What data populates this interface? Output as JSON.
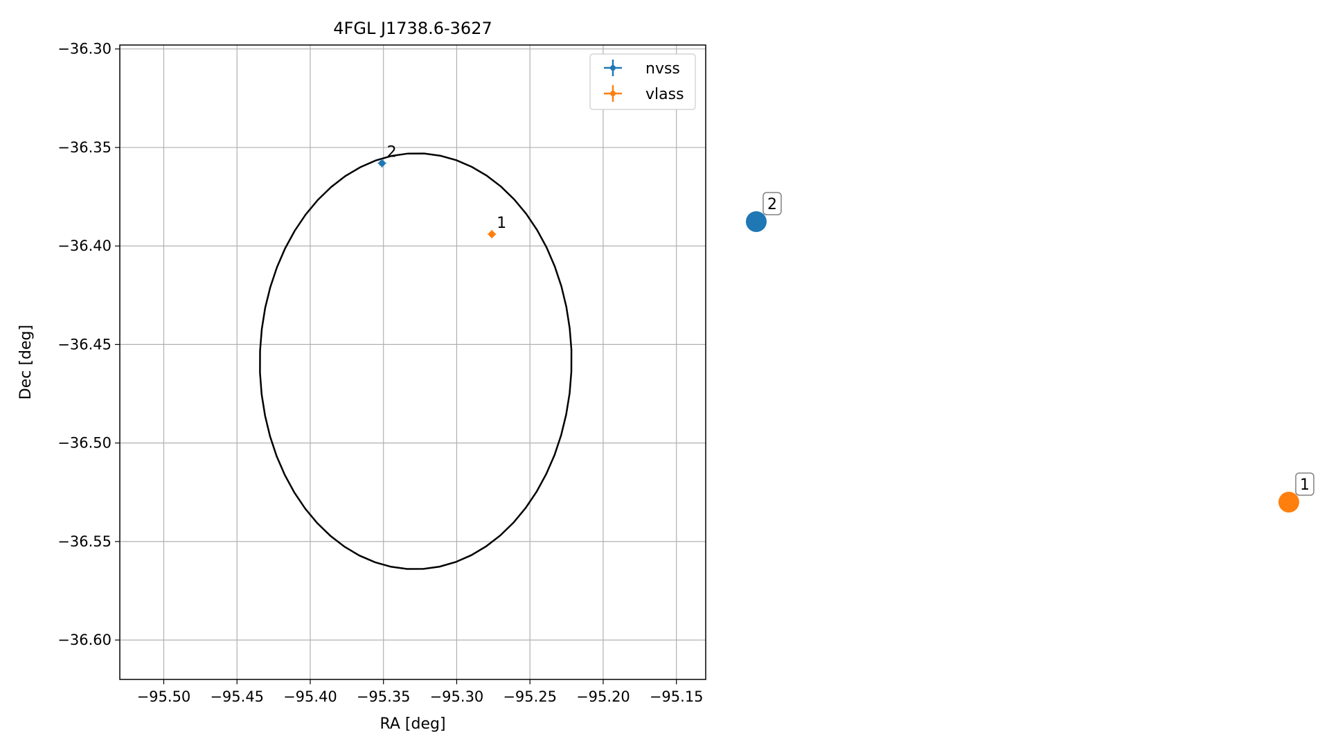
{
  "chart_data": {
    "type": "scatter",
    "title": "4FGL J1738.6-3627",
    "xlabel": "RA [deg]",
    "ylabel": "Dec [deg]",
    "xlim": [
      -95.53,
      -95.13
    ],
    "ylim": [
      -36.62,
      -36.298
    ],
    "xticks": [
      -95.5,
      -95.45,
      -95.4,
      -95.35,
      -95.3,
      -95.25,
      -95.2,
      -95.15
    ],
    "xtick_labels": [
      "−95.50",
      "−95.45",
      "−95.40",
      "−95.35",
      "−95.30",
      "−95.25",
      "−95.20",
      "−95.15"
    ],
    "yticks": [
      -36.3,
      -36.35,
      -36.4,
      -36.45,
      -36.5,
      -36.55,
      -36.6
    ],
    "ytick_labels": [
      "−36.30",
      "−36.35",
      "−36.40",
      "−36.45",
      "−36.50",
      "−36.55",
      "−36.60"
    ],
    "grid": true,
    "legend_position": "top-right",
    "series": [
      {
        "name": "nvss",
        "color": "#1f77b4",
        "points": [
          {
            "x": -95.351,
            "y": -36.358,
            "label": "2"
          }
        ]
      },
      {
        "name": "vlass",
        "color": "#ff7f0e",
        "points": [
          {
            "x": -95.276,
            "y": -36.394,
            "label": "1"
          }
        ]
      }
    ],
    "ellipse": {
      "ra_center": -95.328,
      "dec_center": -36.4585,
      "semi_axis_ra": 0.1065,
      "semi_axis_dec": 0.1055,
      "tilt_deg": 15,
      "color": "#000000"
    },
    "side_markers": [
      {
        "label": "2",
        "color": "#1f77b4"
      },
      {
        "label": "1",
        "color": "#ff7f0e"
      }
    ]
  }
}
